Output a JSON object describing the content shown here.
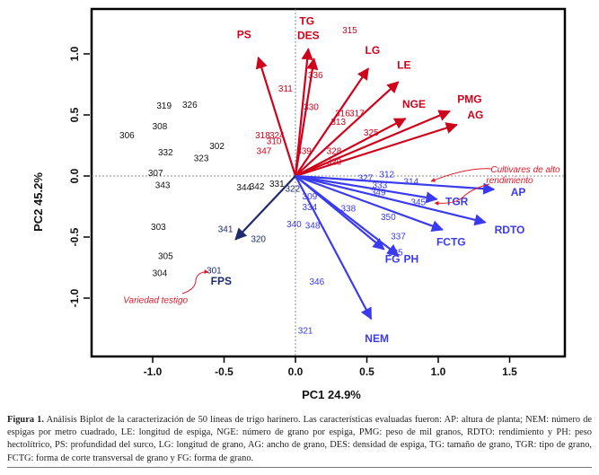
{
  "chart_data": {
    "type": "scatter",
    "subtype": "biplot",
    "xlabel": "PC1 24.9%",
    "ylabel": "PC2 45.2%",
    "xlim": [
      -1.45,
      1.88
    ],
    "ylim": [
      -1.48,
      1.37
    ],
    "xticks": [
      -1.0,
      -0.5,
      0.0,
      0.5,
      1.0,
      1.5
    ],
    "xtick_labels": [
      "-1.0",
      "-0.5",
      "0.0",
      "0.5",
      "1.0",
      "1.5"
    ],
    "yticks": [
      -1.0,
      -0.5,
      0.0,
      0.5,
      1.0
    ],
    "ytick_labels": [
      "-1.0",
      "-0.5",
      "0.0",
      "0.5",
      "1.0"
    ],
    "grid": false,
    "reference_lines": [
      "x=0",
      "y=0"
    ],
    "colors": {
      "red_group": "#d0021b",
      "blue_group": "#3a3af0",
      "navy": "#1f2a6e",
      "black": "#111111",
      "annotation": "#e0192a"
    },
    "vectors": [
      {
        "name": "PS",
        "x": -0.26,
        "y": 0.97,
        "group": "red"
      },
      {
        "name": "TG",
        "x": 0.09,
        "y": 1.04,
        "group": "red"
      },
      {
        "name": "DES",
        "x": 0.13,
        "y": 0.96,
        "group": "red"
      },
      {
        "name": "LG",
        "x": 0.51,
        "y": 0.88,
        "group": "red"
      },
      {
        "name": "LE",
        "x": 0.72,
        "y": 0.77,
        "group": "red"
      },
      {
        "name": "NGE",
        "x": 0.77,
        "y": 0.47,
        "group": "red"
      },
      {
        "name": "PMG",
        "x": 1.08,
        "y": 0.53,
        "group": "red"
      },
      {
        "name": "AG",
        "x": 1.13,
        "y": 0.42,
        "group": "red"
      },
      {
        "name": "AP",
        "x": 1.39,
        "y": -0.11,
        "group": "blue"
      },
      {
        "name": "TGR",
        "x": 0.99,
        "y": -0.19,
        "group": "blue"
      },
      {
        "name": "RDTO",
        "x": 1.33,
        "y": -0.38,
        "group": "blue"
      },
      {
        "name": "FCTG",
        "x": 1.03,
        "y": -0.44,
        "group": "blue"
      },
      {
        "name": "FG",
        "x": 0.62,
        "y": -0.6,
        "group": "blue"
      },
      {
        "name": "PH",
        "x": 0.72,
        "y": -0.65,
        "group": "blue"
      },
      {
        "name": "NEM",
        "x": 0.53,
        "y": -1.17,
        "group": "blue"
      },
      {
        "name": "FPS",
        "x": -0.42,
        "y": -0.52,
        "group": "navy"
      }
    ],
    "vector_label_positions": [
      {
        "name": "PS",
        "x": -0.36,
        "y": 1.13
      },
      {
        "name": "TG",
        "x": 0.08,
        "y": 1.24
      },
      {
        "name": "DES",
        "x": 0.09,
        "y": 1.12
      },
      {
        "name": "LG",
        "x": 0.54,
        "y": 1.0
      },
      {
        "name": "LE",
        "x": 0.76,
        "y": 0.88
      },
      {
        "name": "NGE",
        "x": 0.83,
        "y": 0.56
      },
      {
        "name": "PMG",
        "x": 1.22,
        "y": 0.6
      },
      {
        "name": "AG",
        "x": 1.26,
        "y": 0.47
      },
      {
        "name": "AP",
        "x": 1.56,
        "y": -0.16
      },
      {
        "name": "TGR",
        "x": 1.13,
        "y": -0.24
      },
      {
        "name": "RDTO",
        "x": 1.5,
        "y": -0.47
      },
      {
        "name": "FCTG",
        "x": 1.09,
        "y": -0.57
      },
      {
        "name": "FG",
        "x": 0.68,
        "y": -0.71
      },
      {
        "name": "PH",
        "x": 0.81,
        "y": -0.71
      },
      {
        "name": "NEM",
        "x": 0.57,
        "y": -1.36
      },
      {
        "name": "FPS",
        "x": -0.52,
        "y": -0.89
      }
    ],
    "points": [
      {
        "label": "306",
        "x": -1.18,
        "y": 0.33,
        "group": "black"
      },
      {
        "label": "319",
        "x": -0.92,
        "y": 0.57,
        "group": "black"
      },
      {
        "label": "326",
        "x": -0.74,
        "y": 0.58,
        "group": "black"
      },
      {
        "label": "308",
        "x": -0.95,
        "y": 0.4,
        "group": "black"
      },
      {
        "label": "332",
        "x": -0.91,
        "y": 0.19,
        "group": "black"
      },
      {
        "label": "302",
        "x": -0.55,
        "y": 0.24,
        "group": "black"
      },
      {
        "label": "323",
        "x": -0.66,
        "y": 0.14,
        "group": "black"
      },
      {
        "label": "307",
        "x": -0.98,
        "y": 0.02,
        "group": "black"
      },
      {
        "label": "343",
        "x": -0.93,
        "y": -0.08,
        "group": "black"
      },
      {
        "label": "344",
        "x": -0.36,
        "y": -0.1,
        "group": "black"
      },
      {
        "label": "342",
        "x": -0.27,
        "y": -0.09,
        "group": "black"
      },
      {
        "label": "331",
        "x": -0.13,
        "y": -0.07,
        "group": "black"
      },
      {
        "label": "303",
        "x": -0.96,
        "y": -0.42,
        "group": "black"
      },
      {
        "label": "305",
        "x": -0.91,
        "y": -0.66,
        "group": "black"
      },
      {
        "label": "304",
        "x": -0.95,
        "y": -0.8,
        "group": "black"
      },
      {
        "label": "341",
        "x": -0.49,
        "y": -0.44,
        "group": "navy"
      },
      {
        "label": "320",
        "x": -0.26,
        "y": -0.52,
        "group": "navy"
      },
      {
        "label": "301",
        "x": -0.57,
        "y": -0.78,
        "group": "navy"
      },
      {
        "label": "322",
        "x": -0.02,
        "y": -0.11,
        "group": "navy"
      },
      {
        "label": "311",
        "x": -0.07,
        "y": 0.71,
        "group": "red"
      },
      {
        "label": "315",
        "x": 0.38,
        "y": 1.19,
        "group": "red"
      },
      {
        "label": "336",
        "x": 0.14,
        "y": 0.82,
        "group": "red"
      },
      {
        "label": "330",
        "x": 0.11,
        "y": 0.56,
        "group": "red"
      },
      {
        "label": "316",
        "x": 0.33,
        "y": 0.51,
        "group": "red"
      },
      {
        "label": "317",
        "x": 0.43,
        "y": 0.51,
        "group": "red"
      },
      {
        "label": "313",
        "x": 0.3,
        "y": 0.44,
        "group": "red"
      },
      {
        "label": "325",
        "x": 0.53,
        "y": 0.35,
        "group": "red"
      },
      {
        "label": "318",
        "x": -0.23,
        "y": 0.33,
        "group": "red"
      },
      {
        "label": "324",
        "x": -0.13,
        "y": 0.33,
        "group": "red"
      },
      {
        "label": "310",
        "x": -0.15,
        "y": 0.28,
        "group": "red"
      },
      {
        "label": "347",
        "x": -0.22,
        "y": 0.2,
        "group": "red"
      },
      {
        "label": "339",
        "x": 0.06,
        "y": 0.2,
        "group": "red"
      },
      {
        "label": "328",
        "x": 0.27,
        "y": 0.2,
        "group": "red"
      },
      {
        "label": "329",
        "x": 0.27,
        "y": 0.11,
        "group": "red"
      },
      {
        "label": "327",
        "x": 0.49,
        "y": -0.02,
        "group": "blue"
      },
      {
        "label": "312",
        "x": 0.64,
        "y": 0.01,
        "group": "blue"
      },
      {
        "label": "314",
        "x": 0.81,
        "y": -0.05,
        "group": "blue"
      },
      {
        "label": "333",
        "x": 0.59,
        "y": -0.08,
        "group": "blue"
      },
      {
        "label": "349",
        "x": 0.58,
        "y": -0.14,
        "group": "blue"
      },
      {
        "label": "345",
        "x": 0.86,
        "y": -0.22,
        "group": "blue"
      },
      {
        "label": "309",
        "x": 0.1,
        "y": -0.17,
        "group": "blue"
      },
      {
        "label": "334",
        "x": 0.1,
        "y": -0.26,
        "group": "blue"
      },
      {
        "label": "338",
        "x": 0.37,
        "y": -0.27,
        "group": "blue"
      },
      {
        "label": "350",
        "x": 0.65,
        "y": -0.34,
        "group": "blue"
      },
      {
        "label": "340",
        "x": -0.01,
        "y": -0.4,
        "group": "blue"
      },
      {
        "label": "348",
        "x": 0.12,
        "y": -0.41,
        "group": "blue"
      },
      {
        "label": "337",
        "x": 0.72,
        "y": -0.5,
        "group": "blue"
      },
      {
        "label": "335",
        "x": 0.7,
        "y": -0.63,
        "group": "blue"
      },
      {
        "label": "346",
        "x": 0.15,
        "y": -0.87,
        "group": "blue"
      },
      {
        "label": "321",
        "x": 0.07,
        "y": -1.27,
        "group": "blue"
      }
    ],
    "annotations": [
      {
        "text": "Cultivares de alto",
        "x": 1.61,
        "y": 0.03
      },
      {
        "text": "rendimiento",
        "x": 1.5,
        "y": -0.06
      },
      {
        "text": "Variedad testigo",
        "x": -0.98,
        "y": -1.04
      }
    ]
  },
  "caption": {
    "label": "Figura 1.",
    "text": " Análisis Biplot de la caracterización de 50 líneas de trigo harinero. Las características evaluadas fueron: AP: altura de planta; NEM: número de espigas por metro cuadrado, LE: longitud de espiga, NGE: número de grano por espiga, PMG: peso de mil granos, RDTO: rendimiento y PH: peso hectolítrico, PS: profundidad del surco, LG: longitud de grano, AG: ancho de grano, DES: densidad de espiga, TG: tamaño de grano, TGR: tipo de grano, FCTG: forma de corte transversal de grano y FG: forma de grano."
  }
}
